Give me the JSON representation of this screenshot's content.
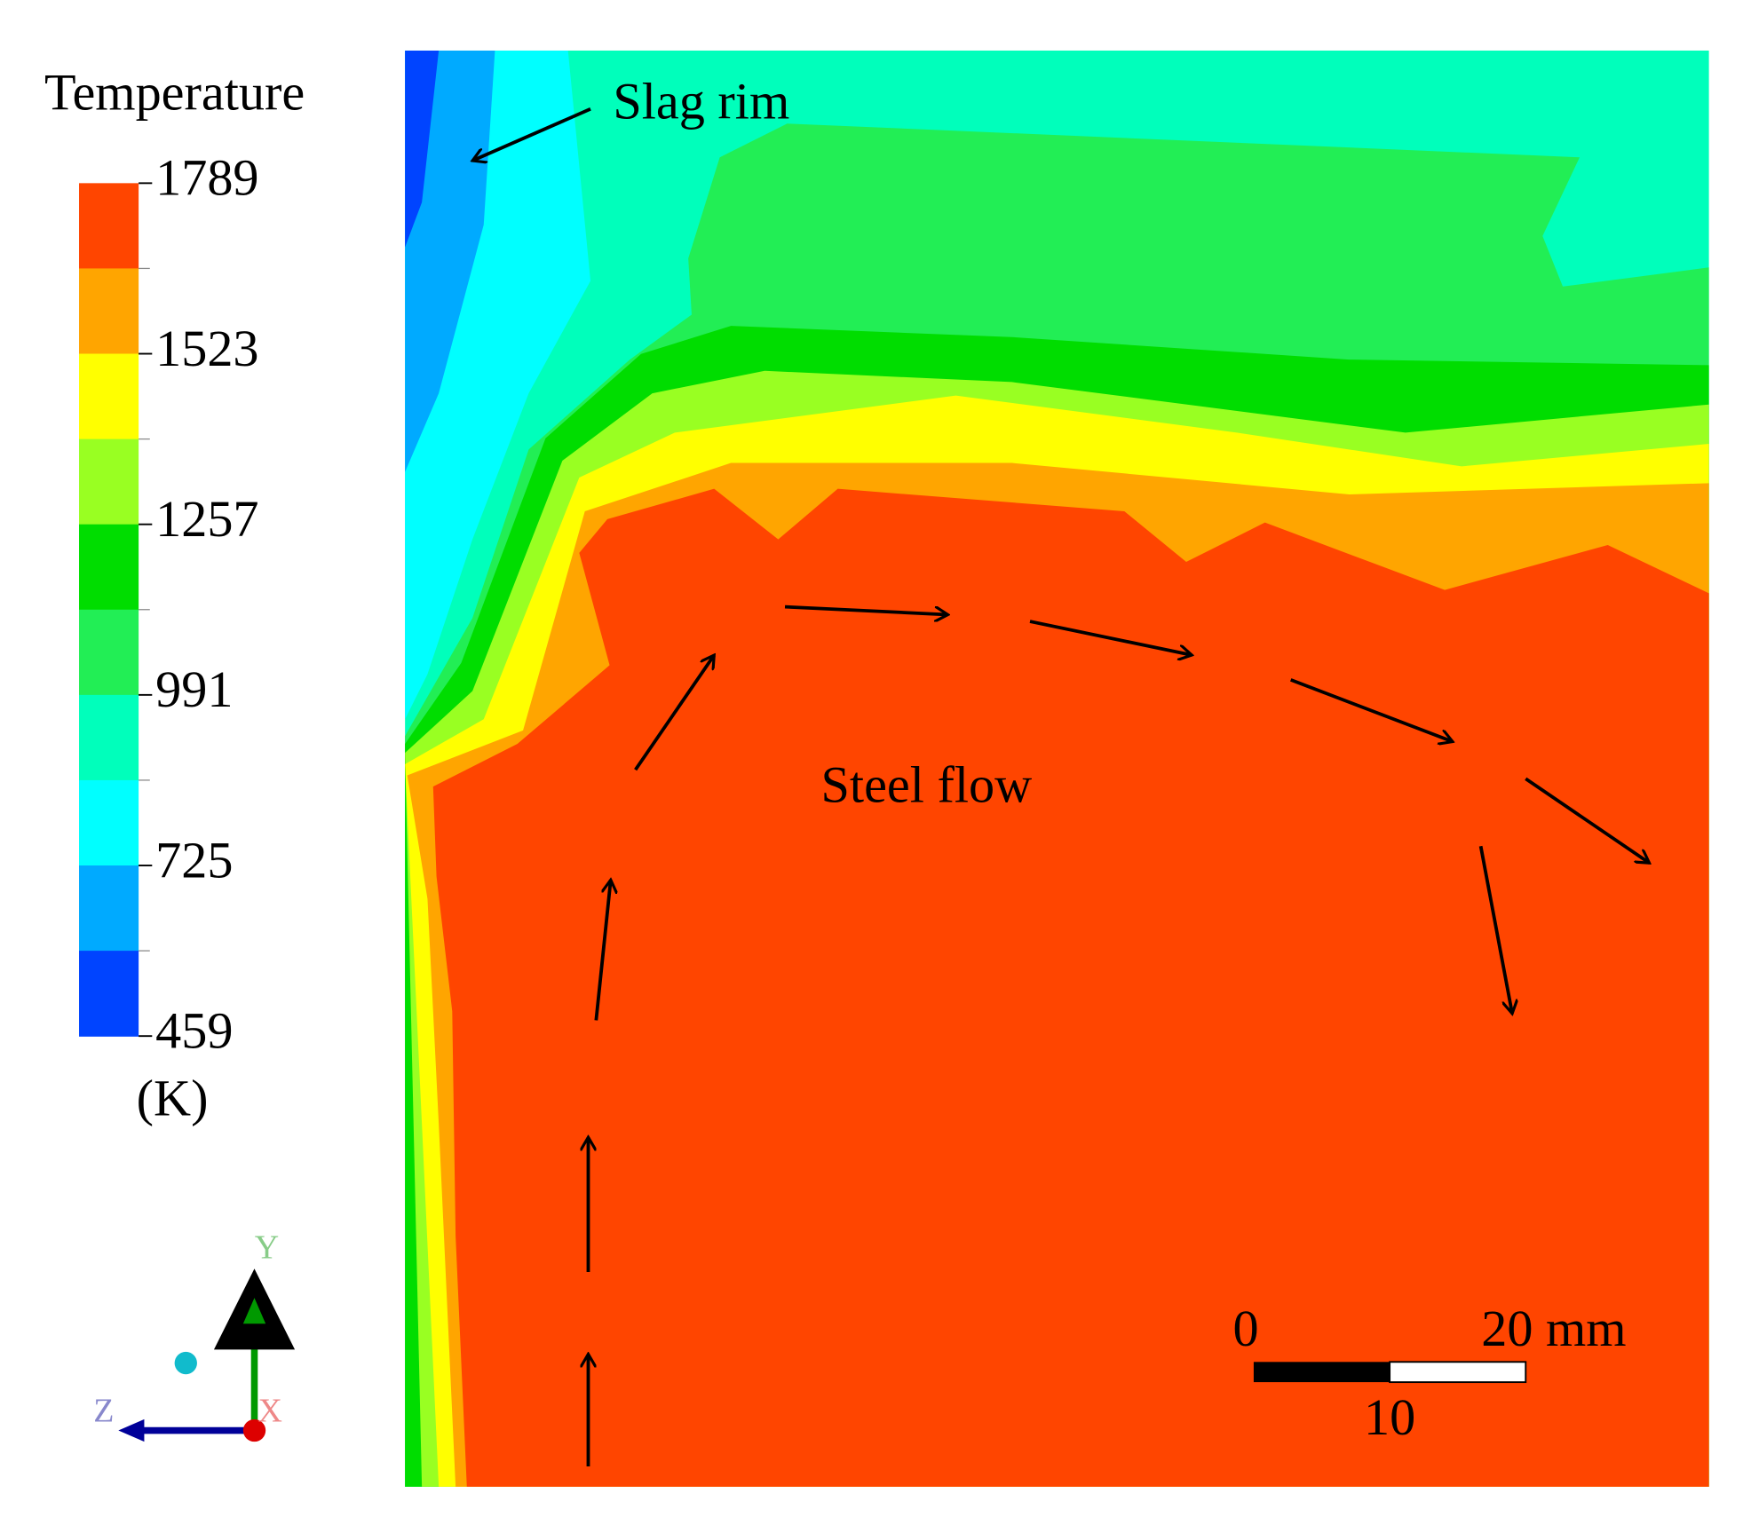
{
  "legend": {
    "title": "Temperature",
    "unit": "(K)",
    "ticks": [
      1789,
      1523,
      1257,
      991,
      725,
      459
    ],
    "colors": [
      "#ff4500",
      "#ffa500",
      "#ffff00",
      "#99ff22",
      "#00dd00",
      "#22ee55",
      "#00ffbb",
      "#00ffff",
      "#00aaff",
      "#0044ff"
    ]
  },
  "annotations": {
    "slag_rim": "Slag rim",
    "steel_flow": "Steel flow"
  },
  "scale_bar": {
    "start": "0",
    "end": "20 mm",
    "mid": "10"
  },
  "axes": {
    "y": "Y",
    "z": "Z",
    "x": "X"
  }
}
